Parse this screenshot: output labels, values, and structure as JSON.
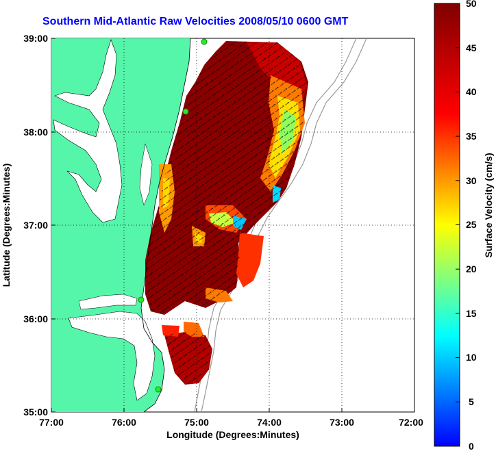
{
  "title": "Southern Mid-Atlantic Raw Velocities 2008/05/10 0600 GMT",
  "xlabel": "Longitude (Degrees:Minutes)",
  "ylabel": "Latitude (Degrees:Minutes)",
  "x_ticks": [
    "77:00",
    "76:00",
    "75:00",
    "74:00",
    "73:00",
    "72:00"
  ],
  "y_ticks": [
    "39:00",
    "38:00",
    "37:00",
    "36:00",
    "35:00"
  ],
  "colorbar": {
    "label": "Surface Velocity (cm/s)",
    "ticks": [
      "50",
      "45",
      "40",
      "35",
      "30",
      "25",
      "20",
      "15",
      "10",
      "5",
      "0"
    ],
    "colormap": "jet"
  },
  "colors": {
    "land": "#55f5aa",
    "water": "#ffffff",
    "title": "#0000ff",
    "vectors": "#000000",
    "bathymetry": "#999999",
    "stations": "#22ee22"
  },
  "map_extent": {
    "lon_min": -77,
    "lon_max": -72,
    "lat_min": 35,
    "lat_max": 39
  }
}
